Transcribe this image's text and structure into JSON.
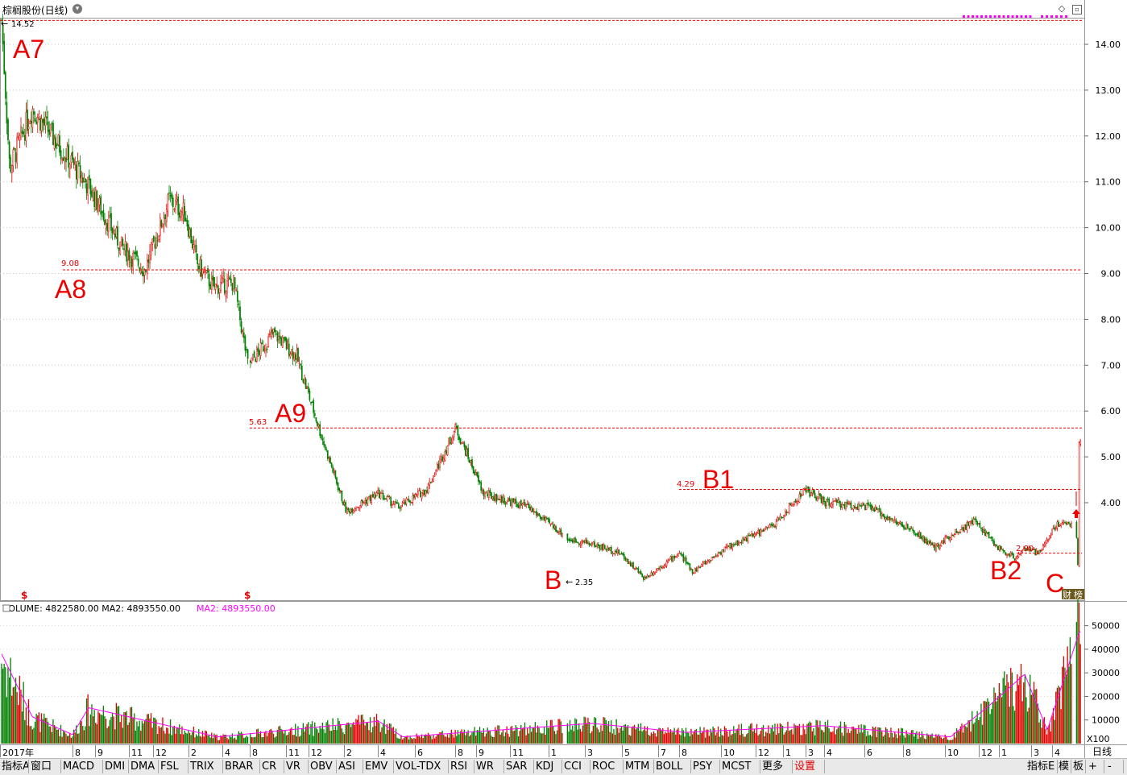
{
  "title": {
    "stock": "棕榈股份(日线)"
  },
  "price_axis": [
    "14.00",
    "13.00",
    "12.00",
    "11.00",
    "10.00",
    "9.00",
    "8.00",
    "7.00",
    "6.00",
    "5.00",
    "4.00"
  ],
  "volume_axis": [
    "50000",
    "40000",
    "30000",
    "20000",
    "10000"
  ],
  "volume_unit": "X100",
  "period": "日线",
  "time_axis": [
    {
      "label": "2017年"
    },
    {
      "label": "8"
    },
    {
      "label": "9"
    },
    {
      "label": "11"
    },
    {
      "label": "12"
    },
    {
      "label": "2"
    },
    {
      "label": "4"
    },
    {
      "label": "8"
    },
    {
      "label": "11"
    },
    {
      "label": "12"
    },
    {
      "label": "2"
    },
    {
      "label": "4"
    },
    {
      "label": "6"
    },
    {
      "label": "8"
    },
    {
      "label": "9"
    },
    {
      "label": "11"
    },
    {
      "label": "1"
    },
    {
      "label": "3"
    },
    {
      "label": "5"
    },
    {
      "label": "7"
    },
    {
      "label": "8"
    },
    {
      "label": "10"
    },
    {
      "label": "12"
    },
    {
      "label": "1"
    },
    {
      "label": "3"
    },
    {
      "label": "4"
    },
    {
      "label": "6"
    },
    {
      "label": "8"
    },
    {
      "label": "10"
    },
    {
      "label": "12"
    },
    {
      "label": "1"
    },
    {
      "label": "3"
    },
    {
      "label": "4"
    }
  ],
  "volume_info": {
    "text": "VOLUME: 4822580.00  MA2: 4893550.00",
    "ma2": "MA2: 4893550.00"
  },
  "annotations": [
    {
      "label": "A7",
      "price_text": "14.52",
      "price": 14.52
    },
    {
      "label": "A8",
      "price_text": "9.08",
      "price": 9.08
    },
    {
      "label": "A9",
      "price_text": "5.63",
      "price": 5.63
    },
    {
      "label": "B1",
      "price_text": "4.29",
      "price": 4.29
    },
    {
      "label": "B",
      "price_text": "2.35",
      "price": 2.35
    },
    {
      "label": "B2",
      "price_text": "2.90",
      "price": 2.9
    },
    {
      "label": "C",
      "price_text": "",
      "price": 2.45
    }
  ],
  "markers": {
    "dividend": "$",
    "fin_label": "财",
    "rank_label": "榜"
  },
  "tabs": [
    "指标A",
    "窗口",
    "MACD",
    "DMI",
    "DMA",
    "FSL",
    "TRIX",
    "BRAR",
    "CR",
    "VR",
    "OBV",
    "ASI",
    "EMV",
    "VOL-TDX",
    "RSI",
    "WR",
    "SAR",
    "KDJ",
    "CCI",
    "ROC",
    "MTM",
    "BOLL",
    "PSY",
    "MCST",
    "更多",
    "设置"
  ],
  "right_tabs": [
    "指标E",
    "模",
    "板",
    "+",
    "-"
  ],
  "chart_data": {
    "type": "candlestick",
    "title": "棕榈股份(日线)",
    "xlabel": "",
    "ylabel": "",
    "ylim": [
      2.2,
      14.8
    ],
    "volume_ylim": [
      0,
      55000
    ],
    "grid": true,
    "anchors": [
      {
        "date": "2017-01",
        "price": 14.52
      },
      {
        "date": "2017-02",
        "price": 11.3
      },
      {
        "date": "2017-03",
        "price": 12.6
      },
      {
        "date": "2017-05",
        "price": 10.9
      },
      {
        "date": "2017-07",
        "price": 9.6
      },
      {
        "date": "2017-08",
        "price": 9.08
      },
      {
        "date": "2017-09",
        "price": 10.6
      },
      {
        "date": "2017-10",
        "price": 10.3
      },
      {
        "date": "2017-11",
        "price": 9.2
      },
      {
        "date": "2017-12",
        "price": 8.7
      },
      {
        "date": "2018-01",
        "price": 8.8
      },
      {
        "date": "2018-02",
        "price": 7.0
      },
      {
        "date": "2018-03",
        "price": 7.7
      },
      {
        "date": "2018-05",
        "price": 7.2
      },
      {
        "date": "2018-08",
        "price": 5.4
      },
      {
        "date": "2018-10",
        "price": 3.8
      },
      {
        "date": "2018-11",
        "price": 4.2
      },
      {
        "date": "2018-12",
        "price": 3.9
      },
      {
        "date": "2019-02",
        "price": 4.3
      },
      {
        "date": "2019-04",
        "price": 5.63
      },
      {
        "date": "2019-05",
        "price": 4.2
      },
      {
        "date": "2019-07",
        "price": 3.9
      },
      {
        "date": "2019-08",
        "price": 3.3
      },
      {
        "date": "2019-10",
        "price": 3.2
      },
      {
        "date": "2019-12",
        "price": 3.1
      },
      {
        "date": "2020-01",
        "price": 2.9
      },
      {
        "date": "2020-02",
        "price": 2.35
      },
      {
        "date": "2020-03",
        "price": 2.9
      },
      {
        "date": "2020-04",
        "price": 2.5
      },
      {
        "date": "2020-06",
        "price": 3.0
      },
      {
        "date": "2020-07",
        "price": 3.5
      },
      {
        "date": "2020-08",
        "price": 4.29
      },
      {
        "date": "2020-09",
        "price": 4.0
      },
      {
        "date": "2020-10",
        "price": 3.9
      },
      {
        "date": "2020-12",
        "price": 3.3
      },
      {
        "date": "2021-01",
        "price": 3.0
      },
      {
        "date": "2021-03",
        "price": 3.3
      },
      {
        "date": "2021-04",
        "price": 3.6
      },
      {
        "date": "2021-06",
        "price": 3.0
      },
      {
        "date": "2021-09",
        "price": 2.8
      },
      {
        "date": "2021-11",
        "price": 3.0
      },
      {
        "date": "2021-12",
        "price": 2.9
      },
      {
        "date": "2022-01",
        "price": 3.5
      },
      {
        "date": "2022-02",
        "price": 3.6
      },
      {
        "date": "2022-03",
        "price": 3.4
      },
      {
        "date": "2022-04",
        "price": 2.7
      },
      {
        "date": "2022-05",
        "price": 2.45
      },
      {
        "date": "2022-05-latest",
        "price": 5.3
      }
    ],
    "volume_anchors": [
      {
        "date": "2017-01",
        "volume": 40000
      },
      {
        "date": "2017-03",
        "volume": 12000
      },
      {
        "date": "2017-07",
        "volume": 4000
      },
      {
        "date": "2017-09",
        "volume": 16000
      },
      {
        "date": "2018-06",
        "volume": 3000
      },
      {
        "date": "2019-04",
        "volume": 10000
      },
      {
        "date": "2019-06",
        "volume": 3000
      },
      {
        "date": "2020-03",
        "volume": 9000
      },
      {
        "date": "2020-08",
        "volume": 5000
      },
      {
        "date": "2021-04",
        "volume": 8000
      },
      {
        "date": "2021-12",
        "volume": 3000
      },
      {
        "date": "2022-01",
        "volume": 17000
      },
      {
        "date": "2022-03",
        "volume": 31000
      },
      {
        "date": "2022-04",
        "volume": 6000
      },
      {
        "date": "2022-05",
        "volume": 50000
      }
    ],
    "horizontal_levels": [
      14.52,
      9.08,
      5.63,
      4.29,
      2.9
    ],
    "colors": {
      "up": "#e00000",
      "down": "#008000",
      "ma": "#ff00ff",
      "level": "#ff0000",
      "grid": "#cccccc"
    }
  }
}
